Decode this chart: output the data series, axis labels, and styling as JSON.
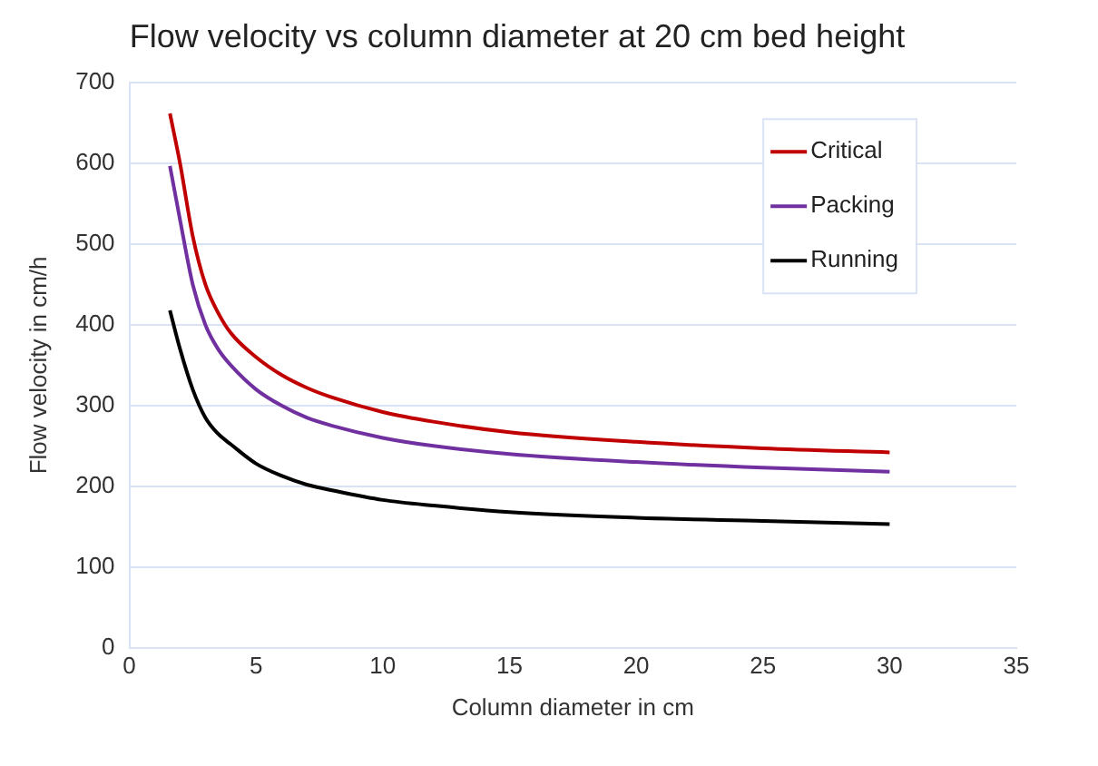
{
  "chart_data": {
    "type": "line",
    "title": "Flow velocity vs column diameter at 20 cm bed height",
    "xlabel": "Column diameter in cm",
    "ylabel": "Flow velocity in cm/h",
    "x": [
      1.6,
      2,
      2.5,
      3,
      3.5,
      4,
      5,
      6,
      7,
      8,
      10,
      12,
      15,
      20,
      25,
      30
    ],
    "series": [
      {
        "name": "Critical",
        "color": "#c00000",
        "values": [
          662,
          600,
          510,
          450,
          415,
          390,
          360,
          338,
          322,
          310,
          292,
          280,
          267,
          255,
          247,
          242
        ]
      },
      {
        "name": "Packing",
        "color": "#7030a0",
        "values": [
          597,
          530,
          450,
          400,
          370,
          350,
          320,
          300,
          285,
          275,
          260,
          250,
          240,
          230,
          223,
          218
        ]
      },
      {
        "name": "Running",
        "color": "#000000",
        "values": [
          418,
          370,
          320,
          285,
          265,
          252,
          228,
          213,
          202,
          195,
          183,
          176,
          168,
          161,
          157,
          153
        ]
      }
    ],
    "xlim": [
      0,
      35
    ],
    "xticks": [
      0,
      5,
      10,
      15,
      20,
      25,
      30,
      35
    ],
    "ylim": [
      0,
      700
    ],
    "yticks": [
      0,
      100,
      200,
      300,
      400,
      500,
      600,
      700
    ],
    "grid": "y",
    "legend": "top right",
    "marker": "none",
    "line_style": "solid"
  }
}
